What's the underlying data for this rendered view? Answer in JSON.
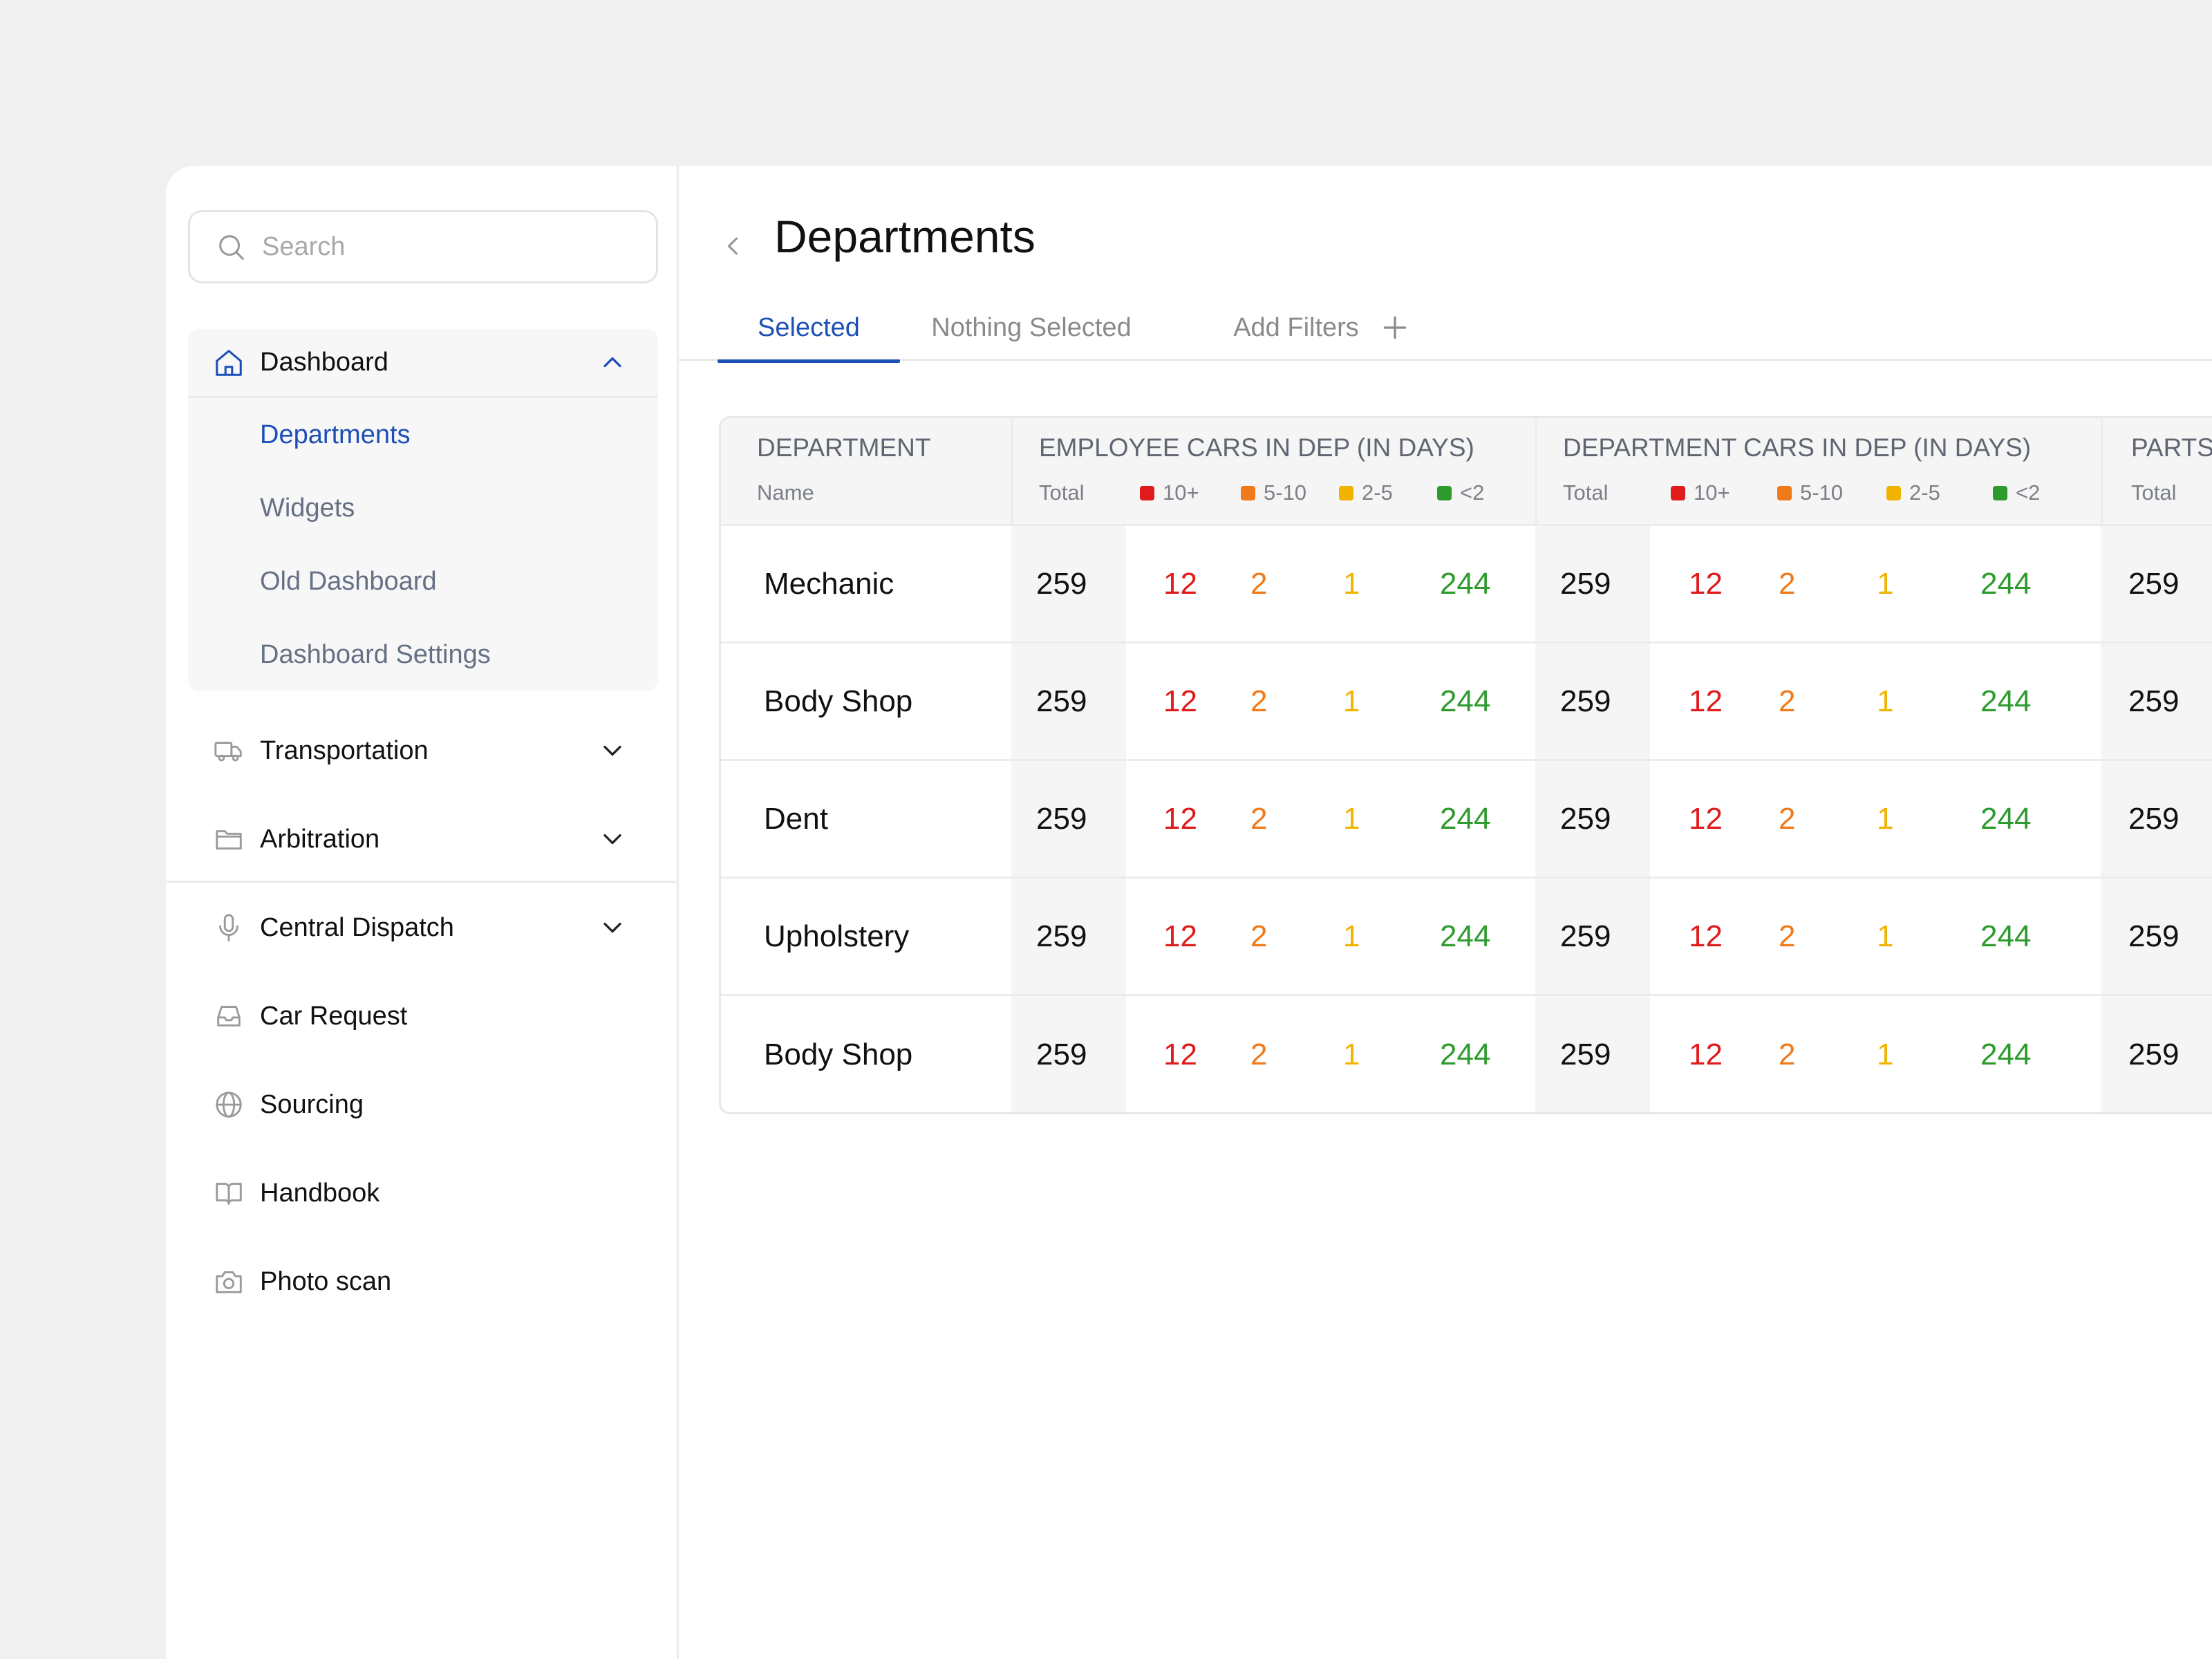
{
  "search": {
    "placeholder": "Search"
  },
  "sidebar": {
    "dashboard": {
      "label": "Dashboard",
      "sub_items": [
        "Departments",
        "Widgets",
        "Old Dashboard",
        "Dashboard Settings"
      ]
    },
    "items": [
      {
        "label": "Transportation",
        "icon": "truck-icon"
      },
      {
        "label": "Arbitration",
        "icon": "folder-icon"
      },
      {
        "label": "Central Dispatch",
        "icon": "microphone-icon"
      },
      {
        "label": "Car Request",
        "icon": "inbox-icon"
      },
      {
        "label": "Sourcing",
        "icon": "globe-icon"
      },
      {
        "label": "Handbook",
        "icon": "book-icon"
      },
      {
        "label": "Photo scan",
        "icon": "camera-icon"
      }
    ]
  },
  "page": {
    "title": "Departments",
    "tabs": [
      "Selected",
      "Nothing Selected",
      "Add Filters"
    ]
  },
  "colors": {
    "accent": "#1d4fb8",
    "red": "#e01b1b",
    "orange": "#f07a1a",
    "yellow": "#f0b400",
    "green": "#2e9b2e"
  },
  "table": {
    "department_header": "DEPARTMENT",
    "name_subheader": "Name",
    "groups": [
      {
        "title": "EMPLOYEE CARS IN DEP (IN DAYS)",
        "subheaders": [
          "Total",
          "10+",
          "5-10",
          "2-5",
          "<2"
        ]
      },
      {
        "title": "DEPARTMENT CARS IN DEP (IN DAYS)",
        "subheaders": [
          "Total",
          "10+",
          "5-10",
          "2-5",
          "<2"
        ]
      },
      {
        "title": "PARTS",
        "subheaders": [
          "Total"
        ]
      }
    ],
    "rows": [
      {
        "name": "Mechanic",
        "emp": [
          "259",
          "12",
          "2",
          "1",
          "244"
        ],
        "dep": [
          "259",
          "12",
          "2",
          "1",
          "244"
        ],
        "parts": [
          "259"
        ]
      },
      {
        "name": "Body Shop",
        "emp": [
          "259",
          "12",
          "2",
          "1",
          "244"
        ],
        "dep": [
          "259",
          "12",
          "2",
          "1",
          "244"
        ],
        "parts": [
          "259"
        ]
      },
      {
        "name": "Dent",
        "emp": [
          "259",
          "12",
          "2",
          "1",
          "244"
        ],
        "dep": [
          "259",
          "12",
          "2",
          "1",
          "244"
        ],
        "parts": [
          "259"
        ]
      },
      {
        "name": "Upholstery",
        "emp": [
          "259",
          "12",
          "2",
          "1",
          "244"
        ],
        "dep": [
          "259",
          "12",
          "2",
          "1",
          "244"
        ],
        "parts": [
          "259"
        ]
      },
      {
        "name": "Body Shop",
        "emp": [
          "259",
          "12",
          "2",
          "1",
          "244"
        ],
        "dep": [
          "259",
          "12",
          "2",
          "1",
          "244"
        ],
        "parts": [
          "259"
        ]
      }
    ]
  }
}
